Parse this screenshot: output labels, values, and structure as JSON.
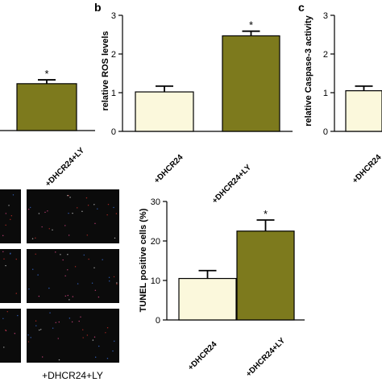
{
  "chart_data": [
    {
      "panel_id": "a-partial",
      "panel_label": "",
      "type": "bar",
      "categories": [
        "+DHCR24+LY"
      ],
      "values": [
        1.22
      ],
      "errors": [
        0.1
      ],
      "significance": [
        "*"
      ],
      "colors": [
        "#7d7a1d"
      ],
      "ylabel": "",
      "ylim": [
        0,
        3
      ],
      "grid": false
    },
    {
      "panel_id": "b",
      "panel_label": "b",
      "type": "bar",
      "categories": [
        "+DHCR24",
        "+DHCR24+LY"
      ],
      "values": [
        1.02,
        2.47
      ],
      "errors": [
        0.15,
        0.12
      ],
      "significance": [
        "",
        "*"
      ],
      "colors": [
        "#fbf8dc",
        "#7d7a1d"
      ],
      "ylabel": "relative ROS levels",
      "yticks": [
        0,
        1,
        2,
        3
      ],
      "ylim": [
        0,
        3
      ],
      "grid": false
    },
    {
      "panel_id": "c",
      "panel_label": "c",
      "type": "bar",
      "categories": [
        "+DHCR24"
      ],
      "values": [
        1.05
      ],
      "errors": [
        0.12
      ],
      "significance": [
        ""
      ],
      "colors": [
        "#fbf8dc"
      ],
      "ylabel": "relative Caspase-3 activity",
      "yticks": [
        0,
        1,
        2,
        3
      ],
      "ylim": [
        0,
        3
      ],
      "grid": false
    },
    {
      "panel_id": "tunel",
      "panel_label": "",
      "type": "bar",
      "categories": [
        "+DHCR24",
        "+DHCR24+LY"
      ],
      "values": [
        10.5,
        22.5
      ],
      "errors": [
        2.0,
        2.8
      ],
      "significance": [
        "",
        "*"
      ],
      "colors": [
        "#fbf8dc",
        "#7d7a1d"
      ],
      "ylabel": "TUNEL positive cells (%)",
      "yticks": [
        0,
        10,
        20,
        30
      ],
      "ylim": [
        0,
        30
      ],
      "grid": false
    }
  ],
  "micrograph": {
    "column_label": "+DHCR24+LY",
    "background": "#0b0b0b",
    "dot_colors": [
      "#c8302a",
      "#3a6fd8",
      "#e04a8a",
      "#d8d8d8"
    ]
  }
}
